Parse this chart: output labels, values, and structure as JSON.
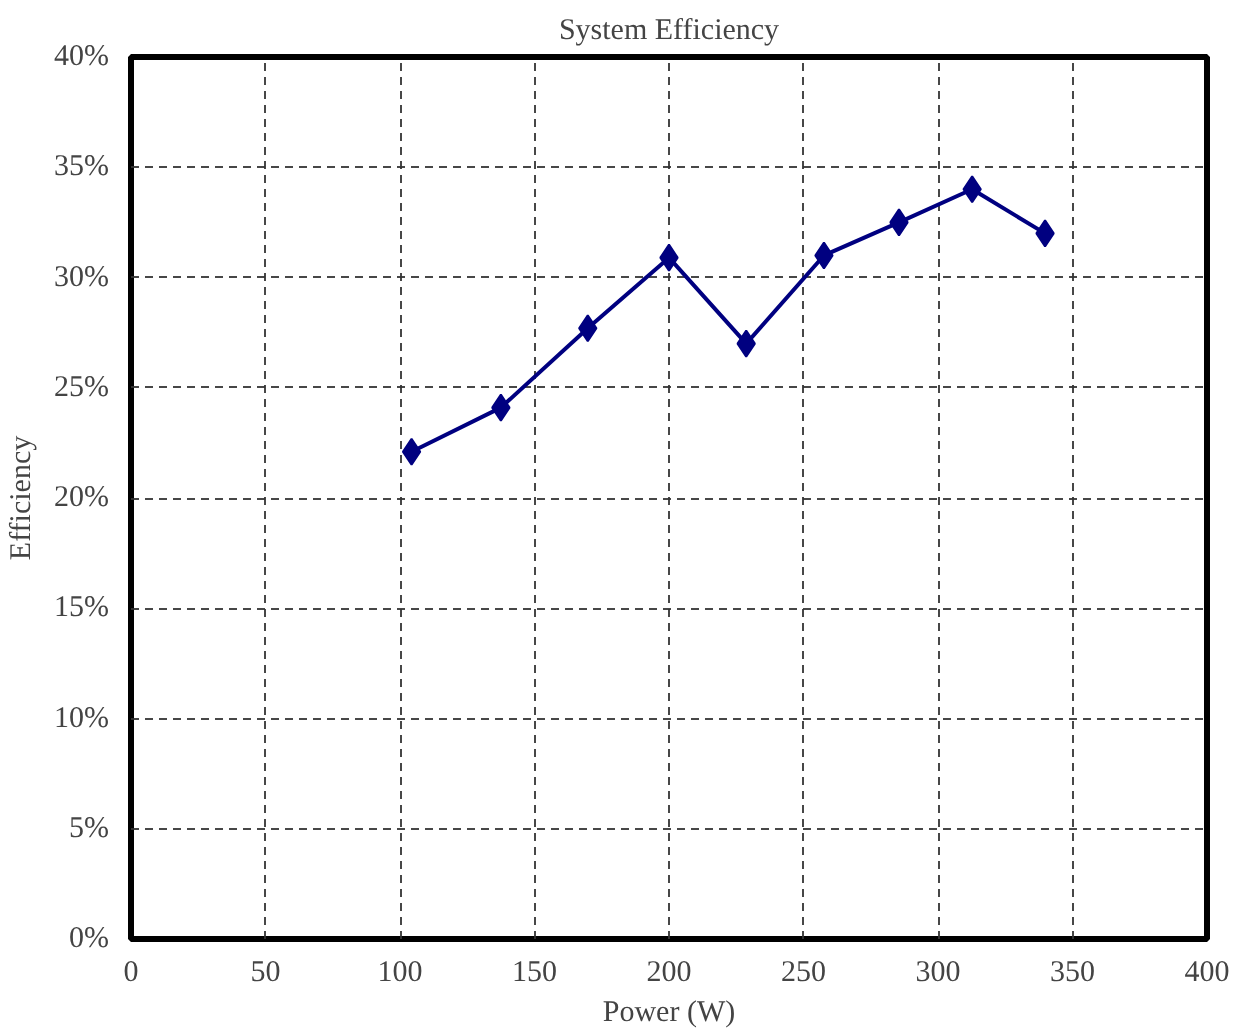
{
  "chart_data": {
    "type": "line",
    "title": "System Efficiency",
    "xlabel": "Power (W)",
    "ylabel": "Efficiency",
    "x": [
      104.3,
      137.5,
      169.8,
      200,
      228.7,
      257.6,
      285.5,
      312.7,
      339.8
    ],
    "series": [
      {
        "color": "#000080",
        "values": [
          22.1,
          24.1,
          27.7,
          30.9,
          27.0,
          31.0,
          32.5,
          34.0,
          32.0
        ]
      }
    ],
    "xlim": [
      0,
      400
    ],
    "xticks": [
      0,
      50,
      100,
      150,
      200,
      250,
      300,
      350,
      400
    ],
    "ylim": [
      0,
      40
    ],
    "yticks": [
      {
        "value": 0,
        "label": "0%"
      },
      {
        "value": 5,
        "label": "5%"
      },
      {
        "value": 10,
        "label": "10%"
      },
      {
        "value": 15,
        "label": "15%"
      },
      {
        "value": 20,
        "label": "20%"
      },
      {
        "value": 25,
        "label": "25%"
      },
      {
        "value": 30,
        "label": "30%"
      },
      {
        "value": 35,
        "label": "35%"
      },
      {
        "value": 40,
        "label": "40%"
      }
    ],
    "grid": true,
    "marker": "diamond",
    "line_style": "solid"
  }
}
